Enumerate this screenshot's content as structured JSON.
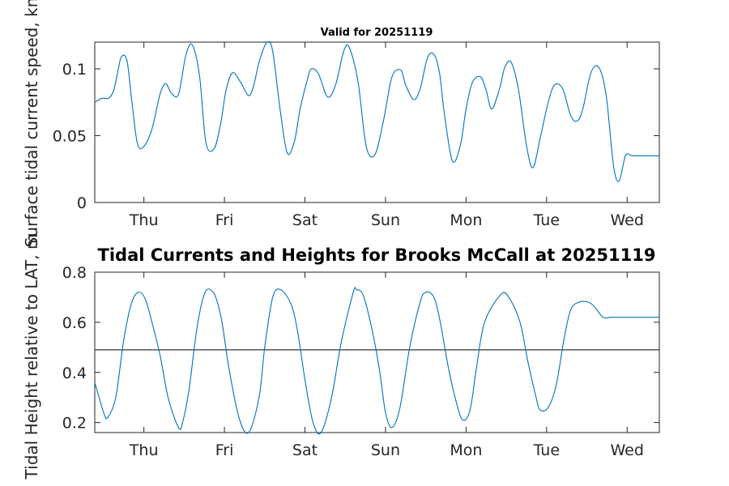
{
  "chart_data": [
    {
      "type": "line",
      "title": "Valid for 20251119",
      "xlabel": "",
      "ylabel": "Surface tidal current speed, kn",
      "x_tick_labels": [
        "Thu",
        "Fri",
        "Sat",
        "Sun",
        "Mon",
        "Tue",
        "Wed"
      ],
      "x_tick_days": [
        0,
        1,
        2,
        3,
        4,
        5,
        6
      ],
      "xlim": [
        -0.61,
        6.4
      ],
      "ylim": [
        0,
        0.12
      ],
      "y_ticks": [
        0,
        0.05,
        0.1
      ],
      "y_tick_labels": [
        "0",
        "0.05",
        "0.1"
      ],
      "grid": false,
      "color": "#0072BD",
      "series": [
        {
          "x": [
            -0.61,
            -0.52,
            -0.44,
            -0.38,
            -0.33,
            -0.28,
            -0.21,
            -0.15,
            -0.08,
            0.0,
            0.1,
            0.2,
            0.27,
            0.34,
            0.43,
            0.52,
            0.6,
            0.69,
            0.77,
            0.87,
            0.95,
            1.02,
            1.1,
            1.2,
            1.3,
            1.36,
            1.44,
            1.53,
            1.6,
            1.69,
            1.78,
            1.87,
            1.94,
            2.03,
            2.08,
            2.17,
            2.28,
            2.38,
            2.48,
            2.55,
            2.66,
            2.76,
            2.87,
            2.98,
            3.08,
            3.19,
            3.25,
            3.35,
            3.43,
            3.52,
            3.6,
            3.67,
            3.73,
            3.83,
            3.93,
            4.0,
            4.08,
            4.18,
            4.25,
            4.32,
            4.42,
            4.48,
            4.56,
            4.65,
            4.75,
            4.83,
            4.92,
            5.02,
            5.1,
            5.2,
            5.3,
            5.38,
            5.45,
            5.55,
            5.65,
            5.74,
            5.83,
            5.9,
            5.98,
            6.06,
            6.16,
            6.24,
            6.33,
            6.4
          ],
          "y": [
            0.075,
            0.078,
            0.078,
            0.083,
            0.096,
            0.109,
            0.106,
            0.076,
            0.044,
            0.042,
            0.055,
            0.081,
            0.089,
            0.082,
            0.081,
            0.11,
            0.118,
            0.095,
            0.045,
            0.04,
            0.058,
            0.084,
            0.097,
            0.09,
            0.08,
            0.087,
            0.107,
            0.12,
            0.113,
            0.07,
            0.037,
            0.046,
            0.07,
            0.092,
            0.1,
            0.096,
            0.079,
            0.088,
            0.113,
            0.116,
            0.09,
            0.042,
            0.036,
            0.063,
            0.094,
            0.099,
            0.088,
            0.077,
            0.085,
            0.108,
            0.111,
            0.097,
            0.067,
            0.031,
            0.043,
            0.07,
            0.09,
            0.094,
            0.084,
            0.07,
            0.086,
            0.101,
            0.105,
            0.085,
            0.043,
            0.026,
            0.048,
            0.075,
            0.088,
            0.085,
            0.065,
            0.061,
            0.07,
            0.097,
            0.101,
            0.08,
            0.028,
            0.016,
            0.035,
            0.035,
            0.035,
            0.035,
            0.035,
            0.035
          ]
        }
      ]
    },
    {
      "type": "line",
      "title": "Tidal Currents and Heights for Brooks McCall at 20251119",
      "xlabel": "",
      "ylabel": "Tidal Height relative to LAT, m",
      "x_tick_labels": [
        "Thu",
        "Fri",
        "Sat",
        "Sun",
        "Mon",
        "Tue",
        "Wed"
      ],
      "x_tick_days": [
        0,
        1,
        2,
        3,
        4,
        5,
        6
      ],
      "xlim": [
        -0.61,
        6.4
      ],
      "ylim": [
        0.16,
        0.8
      ],
      "y_ticks": [
        0.2,
        0.4,
        0.6,
        0.8
      ],
      "y_tick_labels": [
        "0.2",
        "0.4",
        "0.6",
        "0.8"
      ],
      "grid": false,
      "reference_line": 0.49,
      "reference_color": "#333333",
      "color": "#0072BD",
      "series": [
        {
          "x": [
            -0.61,
            -0.5,
            -0.45,
            -0.35,
            -0.25,
            -0.15,
            -0.06,
            0.02,
            0.1,
            0.2,
            0.3,
            0.43,
            0.48,
            0.56,
            0.66,
            0.76,
            0.86,
            0.93,
            0.98,
            1.06,
            1.18,
            1.3,
            1.43,
            1.5,
            1.6,
            1.7,
            1.83,
            1.91,
            2.0,
            2.1,
            2.2,
            2.33,
            2.45,
            2.6,
            2.64,
            2.72,
            2.82,
            2.92,
            3.0,
            3.08,
            3.18,
            3.3,
            3.43,
            3.5,
            3.6,
            3.68,
            3.78,
            3.88,
            3.96,
            4.05,
            4.13,
            4.23,
            4.43,
            4.53,
            4.67,
            4.77,
            4.87,
            4.92,
            5.02,
            5.12,
            5.22,
            5.3,
            5.4,
            5.52,
            5.6,
            5.7,
            5.8,
            5.88,
            6.0,
            6.1,
            6.2,
            6.4
          ],
          "y": [
            0.36,
            0.24,
            0.22,
            0.3,
            0.53,
            0.68,
            0.72,
            0.69,
            0.6,
            0.47,
            0.3,
            0.18,
            0.2,
            0.33,
            0.58,
            0.72,
            0.72,
            0.66,
            0.58,
            0.41,
            0.22,
            0.16,
            0.3,
            0.5,
            0.7,
            0.73,
            0.67,
            0.56,
            0.37,
            0.2,
            0.16,
            0.3,
            0.52,
            0.72,
            0.73,
            0.71,
            0.59,
            0.42,
            0.24,
            0.18,
            0.26,
            0.5,
            0.68,
            0.72,
            0.7,
            0.6,
            0.42,
            0.28,
            0.21,
            0.25,
            0.42,
            0.6,
            0.71,
            0.7,
            0.6,
            0.44,
            0.3,
            0.25,
            0.26,
            0.35,
            0.54,
            0.65,
            0.68,
            0.68,
            0.66,
            0.62,
            0.62,
            0.62,
            0.62,
            0.62,
            0.62,
            0.62
          ]
        }
      ]
    }
  ]
}
